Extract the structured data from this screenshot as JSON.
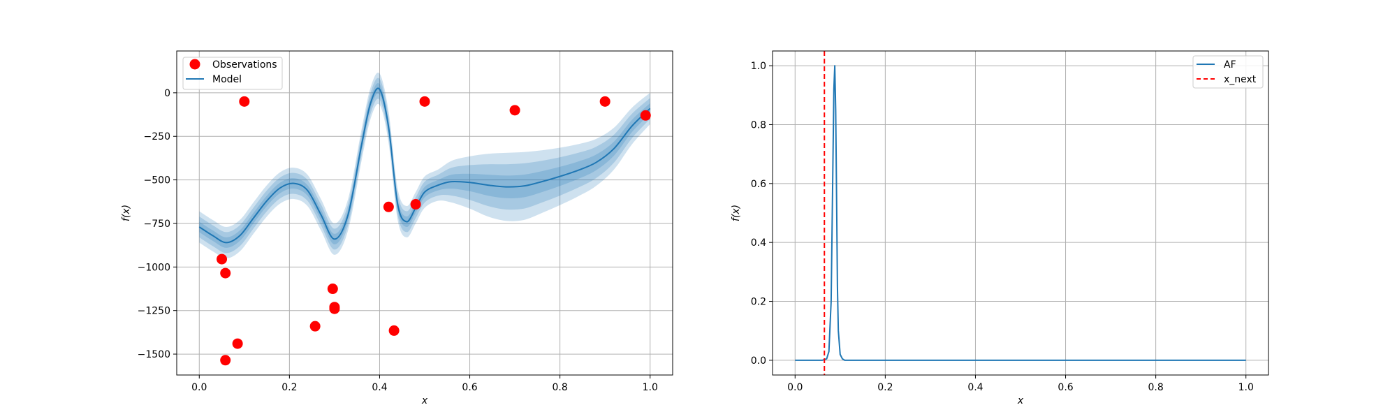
{
  "chart_data": [
    {
      "type": "line",
      "xlabel": "x",
      "ylabel": "f(x)",
      "xlim": [
        -0.05,
        1.05
      ],
      "ylim": [
        -1620,
        240
      ],
      "xticks": [
        0.0,
        0.2,
        0.4,
        0.6,
        0.8,
        1.0
      ],
      "xtick_labels": [
        "0.0",
        "0.2",
        "0.4",
        "0.6",
        "0.8",
        "1.0"
      ],
      "yticks": [
        0,
        -250,
        -500,
        -750,
        -1000,
        -1250,
        -1500
      ],
      "ytick_labels": [
        "0",
        "−250",
        "−500",
        "−750",
        "−1000",
        "−1250",
        "−1500"
      ],
      "grid": true,
      "legend_position": "top-left",
      "legend": [
        "Observations",
        "Model"
      ],
      "observations": {
        "name": "Observations",
        "color": "#ff0000",
        "points": [
          {
            "x": 0.1,
            "y": -50
          },
          {
            "x": 0.5,
            "y": -50
          },
          {
            "x": 0.7,
            "y": -100
          },
          {
            "x": 0.9,
            "y": -50
          },
          {
            "x": 0.99,
            "y": -130
          },
          {
            "x": 0.42,
            "y": -655
          },
          {
            "x": 0.48,
            "y": -640
          },
          {
            "x": 0.05,
            "y": -955
          },
          {
            "x": 0.058,
            "y": -1035
          },
          {
            "x": 0.296,
            "y": -1125
          },
          {
            "x": 0.3,
            "y": -1230
          },
          {
            "x": 0.3,
            "y": -1240
          },
          {
            "x": 0.257,
            "y": -1340
          },
          {
            "x": 0.432,
            "y": -1365
          },
          {
            "x": 0.085,
            "y": -1440
          },
          {
            "x": 0.058,
            "y": -1535
          }
        ]
      },
      "model": {
        "name": "Model",
        "color": "#1f77b4",
        "x": [
          0.0,
          0.03,
          0.06,
          0.09,
          0.12,
          0.15,
          0.18,
          0.21,
          0.24,
          0.27,
          0.3,
          0.33,
          0.36,
          0.38,
          0.4,
          0.42,
          0.44,
          0.46,
          0.48,
          0.5,
          0.53,
          0.56,
          0.6,
          0.64,
          0.68,
          0.72,
          0.76,
          0.8,
          0.84,
          0.88,
          0.92,
          0.96,
          1.0
        ],
        "mean": [
          -770,
          -820,
          -860,
          -820,
          -720,
          -620,
          -545,
          -520,
          -560,
          -700,
          -840,
          -700,
          -300,
          -60,
          20,
          -200,
          -640,
          -740,
          -660,
          -570,
          -530,
          -510,
          -515,
          -530,
          -540,
          -535,
          -510,
          -480,
          -445,
          -400,
          -320,
          -190,
          -90
        ],
        "band_std": [
          30,
          30,
          30,
          30,
          30,
          30,
          30,
          30,
          30,
          30,
          30,
          30,
          30,
          30,
          30,
          30,
          30,
          30,
          30,
          30,
          30,
          40,
          50,
          60,
          65,
          65,
          60,
          55,
          50,
          45,
          40,
          35,
          30
        ]
      }
    },
    {
      "type": "line",
      "xlabel": "x",
      "ylabel": "f(x)",
      "xlim": [
        -0.05,
        1.05
      ],
      "ylim": [
        -0.05,
        1.05
      ],
      "xticks": [
        0.0,
        0.2,
        0.4,
        0.6,
        0.8,
        1.0
      ],
      "xtick_labels": [
        "0.0",
        "0.2",
        "0.4",
        "0.6",
        "0.8",
        "1.0"
      ],
      "yticks": [
        0.0,
        0.2,
        0.4,
        0.6,
        0.8,
        1.0
      ],
      "ytick_labels": [
        "0.0",
        "0.2",
        "0.4",
        "0.6",
        "0.8",
        "1.0"
      ],
      "grid": true,
      "legend_position": "top-right",
      "legend": [
        "AF",
        "x_next"
      ],
      "series": [
        {
          "name": "AF",
          "color": "#1f77b4",
          "x": [
            0.0,
            0.06,
            0.07,
            0.075,
            0.08,
            0.083,
            0.086,
            0.088,
            0.09,
            0.092,
            0.094,
            0.096,
            0.1,
            0.105,
            0.11,
            0.12,
            1.0
          ],
          "values": [
            0.0,
            0.0,
            0.005,
            0.03,
            0.2,
            0.55,
            0.92,
            1.0,
            0.85,
            0.55,
            0.25,
            0.1,
            0.02,
            0.005,
            0.0,
            0.0,
            0.0
          ]
        }
      ],
      "vline": {
        "name": "x_next",
        "x": 0.065,
        "color": "#ff0000",
        "style": "dashed"
      }
    }
  ]
}
